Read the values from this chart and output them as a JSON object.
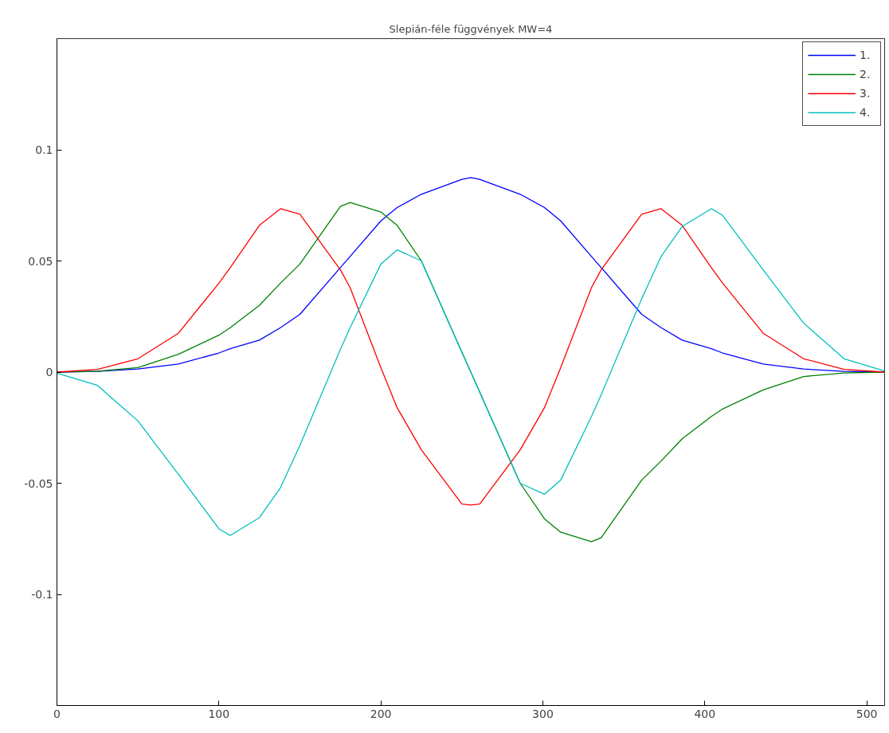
{
  "chart_data": {
    "type": "line",
    "title": "Slepián-féle függvények MW=4",
    "x": [
      0,
      25,
      50,
      75,
      100,
      107,
      125,
      138,
      150,
      175,
      181,
      200,
      210,
      225,
      250,
      255.5,
      261,
      286,
      301,
      311,
      330,
      336,
      361,
      373,
      386,
      404,
      411,
      436,
      461,
      486,
      511
    ],
    "series": [
      {
        "name": "1.",
        "color": "#0000ff",
        "values": [
          0,
          0.0003,
          0.0014,
          0.0036,
          0.0086,
          0.0105,
          0.0144,
          0.02,
          0.026,
          0.047,
          0.052,
          0.068,
          0.074,
          0.08,
          0.0867,
          0.0875,
          0.0867,
          0.08,
          0.074,
          0.068,
          0.052,
          0.047,
          0.026,
          0.02,
          0.0144,
          0.0105,
          0.0086,
          0.0036,
          0.0014,
          0.0003,
          0
        ]
      },
      {
        "name": "2.",
        "color": "#008000",
        "values": [
          0,
          0.0004,
          0.002,
          0.008,
          0.0166,
          0.02,
          0.03,
          0.04,
          0.0486,
          0.0745,
          0.0763,
          0.072,
          0.066,
          0.05,
          0.009,
          0,
          -0.009,
          -0.05,
          -0.066,
          -0.072,
          -0.0763,
          -0.0745,
          -0.0486,
          -0.04,
          -0.03,
          -0.02,
          -0.0166,
          -0.008,
          -0.002,
          -0.0004,
          0
        ]
      },
      {
        "name": "3.",
        "color": "#ff0000",
        "values": [
          0,
          0.0012,
          0.006,
          0.0175,
          0.04,
          0.047,
          0.066,
          0.0735,
          0.071,
          0.046,
          0.038,
          0.002,
          -0.016,
          -0.035,
          -0.0594,
          -0.0598,
          -0.0594,
          -0.035,
          -0.016,
          0.002,
          0.038,
          0.046,
          0.071,
          0.0735,
          0.066,
          0.047,
          0.04,
          0.0175,
          0.006,
          0.0012,
          0
        ]
      },
      {
        "name": "4.",
        "color": "#00bfbf",
        "values": [
          -0.0005,
          -0.006,
          -0.022,
          -0.046,
          -0.0705,
          -0.0735,
          -0.0655,
          -0.052,
          -0.033,
          0.0102,
          0.02,
          0.0486,
          0.055,
          0.05,
          0.009,
          0,
          -0.009,
          -0.05,
          -0.055,
          -0.0486,
          -0.02,
          -0.0102,
          0.033,
          0.052,
          0.0655,
          0.0735,
          0.0705,
          0.046,
          0.022,
          0.006,
          0.0005
        ]
      }
    ],
    "xlim": [
      0,
      511
    ],
    "ylim": [
      -0.15,
      0.15
    ],
    "xticks": [
      0,
      100,
      200,
      300,
      400,
      500
    ],
    "yticks": [
      -0.1,
      -0.05,
      0,
      0.05,
      0.1
    ],
    "legend": "top right",
    "grid": false
  }
}
